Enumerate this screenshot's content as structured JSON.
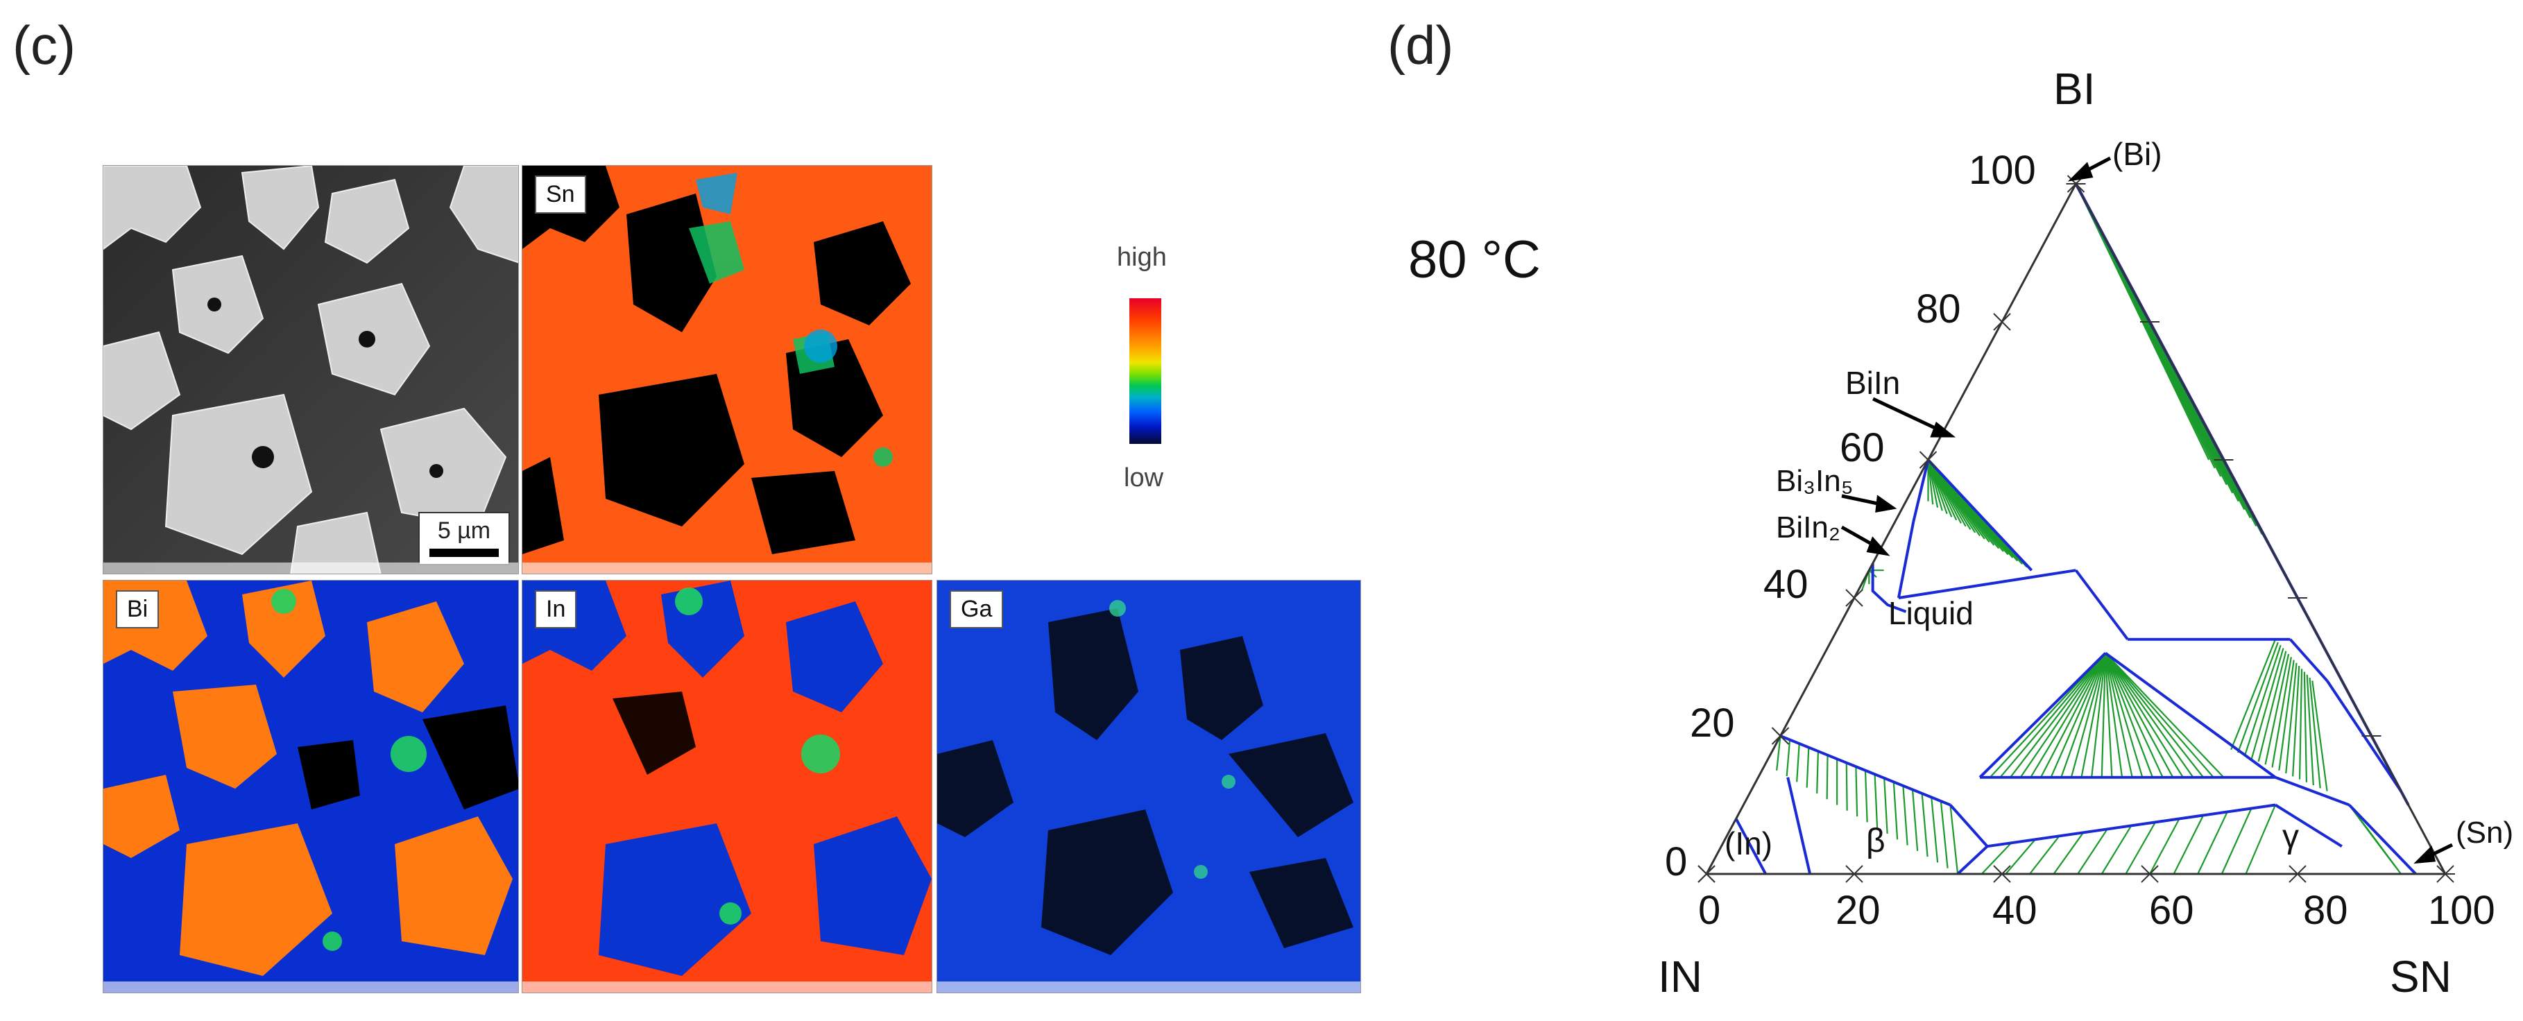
{
  "panels": {
    "c": {
      "label": "(c)"
    },
    "d": {
      "label": "(d)"
    }
  },
  "maps": [
    {
      "id": "sem",
      "tag": "",
      "scale_label": "5 µm"
    },
    {
      "id": "sn",
      "tag": "Sn"
    },
    {
      "id": "bi",
      "tag": "Bi"
    },
    {
      "id": "in",
      "tag": "In"
    },
    {
      "id": "ga",
      "tag": "Ga"
    }
  ],
  "colorbar": {
    "high": "high",
    "low": "low"
  },
  "phase_diagram": {
    "temperature_label": "80 °C",
    "vertices": {
      "top": "BI",
      "left": "IN",
      "right": "SN"
    },
    "left_ticks": [
      "0",
      "20",
      "40",
      "60",
      "80",
      "100"
    ],
    "bottom_ticks": [
      "0",
      "20",
      "40",
      "60",
      "80",
      "100"
    ],
    "phase_labels": {
      "bi": "(Bi)",
      "biin": "BiIn",
      "bi3in5": "Bi₃In₅",
      "biin2": "BiIn₂",
      "liquid": "Liquid",
      "in": "(In)",
      "beta": "β",
      "gamma": "γ",
      "sn": "(Sn)"
    },
    "colors": {
      "boundary": "#1a2ad4",
      "tie_line": "#1a9a2a",
      "frame": "#333333"
    }
  }
}
